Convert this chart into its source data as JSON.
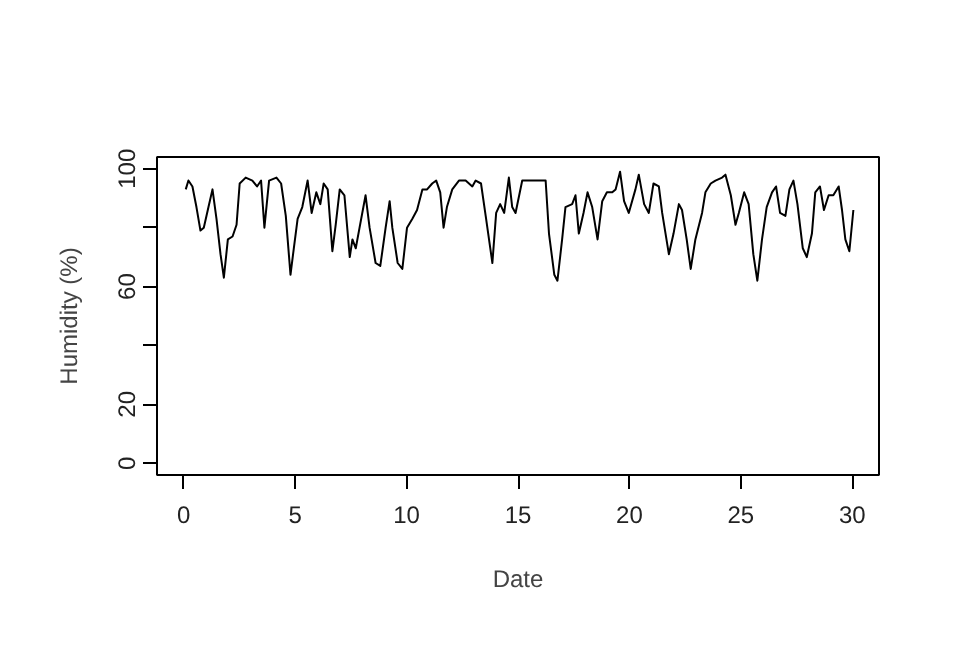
{
  "chart_data": {
    "type": "line",
    "xlabel": "Date",
    "ylabel": "Humidity (%)",
    "color": "#000000",
    "line_style": "solid",
    "xlim": [
      -1.2,
      31.2
    ],
    "ylim": [
      -4,
      104
    ],
    "xticks": [
      0,
      5,
      10,
      15,
      20,
      25,
      30
    ],
    "yticks": [
      0,
      20,
      {
        "value": 40,
        "label": null
      },
      60,
      {
        "value": 80,
        "label": null
      },
      100
    ],
    "x": [
      0.09,
      0.21,
      0.39,
      0.57,
      0.75,
      0.9,
      1.11,
      1.29,
      1.47,
      1.65,
      1.8,
      1.98,
      2.19,
      2.37,
      2.51,
      2.78,
      3.08,
      3.29,
      3.47,
      3.62,
      3.83,
      4.16,
      4.37,
      4.58,
      4.79,
      4.94,
      5.11,
      5.32,
      5.56,
      5.74,
      5.95,
      6.13,
      6.28,
      6.46,
      6.67,
      6.82,
      7.0,
      7.21,
      7.45,
      7.57,
      7.72,
      7.89,
      8.16,
      8.34,
      8.61,
      8.82,
      9.06,
      9.24,
      9.36,
      9.6,
      9.81,
      10.02,
      10.26,
      10.47,
      10.71,
      10.92,
      11.15,
      11.33,
      11.51,
      11.66,
      11.81,
      12.05,
      12.35,
      12.65,
      12.95,
      13.1,
      13.34,
      13.55,
      13.85,
      14.02,
      14.2,
      14.38,
      14.59,
      14.74,
      14.89,
      15.19,
      15.64,
      16.24,
      16.39,
      16.63,
      16.77,
      16.98,
      17.13,
      17.43,
      17.58,
      17.73,
      17.94,
      18.12,
      18.33,
      18.57,
      18.78,
      18.99,
      19.23,
      19.38,
      19.58,
      19.76,
      19.97,
      20.27,
      20.42,
      20.66,
      20.87,
      21.08,
      21.32,
      21.47,
      21.77,
      21.98,
      22.22,
      22.36,
      22.57,
      22.75,
      22.96,
      23.26,
      23.41,
      23.65,
      23.86,
      24.16,
      24.31,
      24.55,
      24.76,
      24.91,
      25.15,
      25.35,
      25.56,
      25.74,
      25.95,
      26.16,
      26.4,
      26.58,
      26.76,
      27.0,
      27.18,
      27.36,
      27.54,
      27.78,
      27.96,
      28.19,
      28.34,
      28.55,
      28.73,
      28.94,
      29.15,
      29.39,
      29.54,
      29.69,
      29.87,
      30.05
    ],
    "values": [
      93,
      96,
      94,
      87,
      79,
      80,
      87,
      93,
      83,
      71,
      63,
      76,
      77,
      81,
      95,
      97,
      96,
      94,
      96,
      80,
      96,
      97,
      95,
      84,
      64,
      73,
      83,
      87,
      96,
      85,
      92,
      88,
      95,
      93,
      72,
      81,
      93,
      91,
      70,
      76,
      73,
      80,
      91,
      80,
      68,
      67,
      80,
      89,
      80,
      68,
      66,
      80,
      83,
      86,
      93,
      93,
      95,
      96,
      92,
      80,
      87,
      93,
      96,
      96,
      94,
      96,
      95,
      84,
      68,
      85,
      88,
      85,
      97,
      87,
      85,
      96,
      96,
      96,
      78,
      64,
      62,
      76,
      87,
      88,
      91,
      78,
      85,
      92,
      87,
      76,
      89,
      92,
      92,
      93,
      99,
      89,
      85,
      93,
      98,
      88,
      85,
      95,
      94,
      85,
      71,
      78,
      88,
      86,
      76,
      66,
      76,
      85,
      92,
      95,
      96,
      97,
      98,
      91,
      81,
      85,
      92,
      88,
      71,
      62,
      76,
      87,
      92,
      94,
      85,
      84,
      93,
      96,
      88,
      73,
      70,
      78,
      92,
      94,
      86,
      91,
      91,
      94,
      86,
      76,
      72,
      86
    ]
  }
}
